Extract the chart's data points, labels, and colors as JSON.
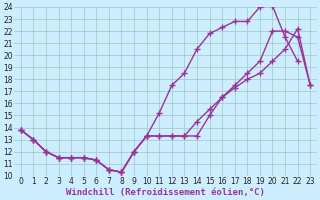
{
  "bg_color": "#cceeff",
  "grid_color": "#aacccc",
  "line_color": "#993399",
  "line1_x": [
    0,
    1,
    2,
    3,
    4,
    5,
    6,
    7,
    8,
    9,
    10,
    11,
    12,
    13,
    14,
    15,
    16,
    17,
    18,
    19,
    20,
    21,
    22,
    23
  ],
  "line1_y": [
    13.8,
    13.0,
    12.0,
    11.5,
    11.5,
    11.5,
    11.3,
    10.5,
    10.3,
    12.0,
    13.3,
    15.2,
    17.5,
    18.5,
    20.5,
    21.8,
    22.3,
    22.8,
    22.8,
    24.0,
    24.1,
    21.5,
    19.5,
    null
  ],
  "line2_x": [
    0,
    1,
    2,
    3,
    4,
    5,
    6,
    7,
    8,
    9,
    10,
    11,
    12,
    13,
    14,
    15,
    16,
    17,
    18,
    19,
    20,
    21,
    22,
    23
  ],
  "line2_y": [
    13.8,
    13.0,
    12.0,
    11.5,
    11.5,
    11.5,
    11.3,
    10.5,
    10.3,
    12.0,
    13.3,
    13.3,
    13.3,
    13.3,
    13.3,
    15.0,
    16.5,
    17.5,
    18.5,
    19.5,
    22.0,
    22.0,
    21.5,
    17.5
  ],
  "line3_x": [
    0,
    1,
    2,
    3,
    4,
    5,
    6,
    7,
    8,
    9,
    10,
    11,
    12,
    13,
    14,
    15,
    16,
    17,
    18,
    19,
    20,
    21,
    22,
    23
  ],
  "line3_y": [
    13.8,
    13.0,
    12.0,
    11.5,
    11.5,
    11.5,
    11.3,
    10.5,
    10.3,
    12.0,
    13.3,
    13.3,
    13.3,
    13.3,
    14.5,
    15.5,
    16.5,
    17.3,
    18.0,
    18.5,
    19.5,
    20.5,
    22.2,
    17.5
  ],
  "xlim": [
    -0.5,
    23.5
  ],
  "ylim": [
    10,
    24
  ],
  "xticks": [
    0,
    1,
    2,
    3,
    4,
    5,
    6,
    7,
    8,
    9,
    10,
    11,
    12,
    13,
    14,
    15,
    16,
    17,
    18,
    19,
    20,
    21,
    22,
    23
  ],
  "yticks": [
    10,
    11,
    12,
    13,
    14,
    15,
    16,
    17,
    18,
    19,
    20,
    21,
    22,
    23,
    24
  ],
  "xlabel": "Windchill (Refroidissement éolien,°C)",
  "marker": "+",
  "markersize": 4,
  "linewidth": 1.0,
  "xlabel_fontsize": 6.5,
  "tick_fontsize": 5.5
}
